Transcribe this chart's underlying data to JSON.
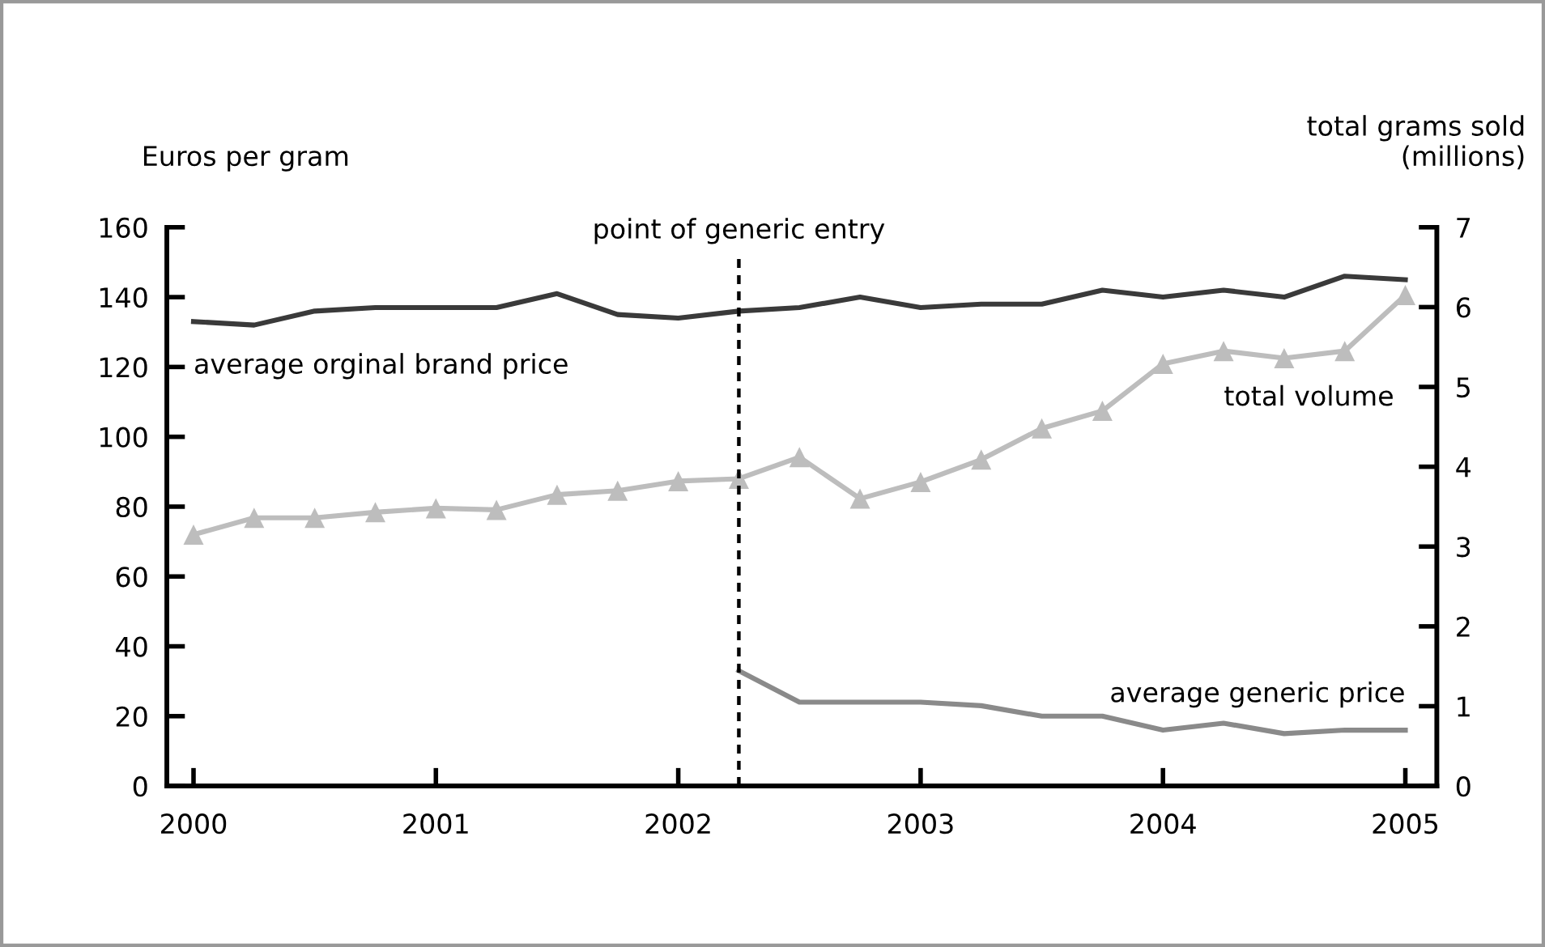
{
  "chart_data": {
    "type": "line",
    "ylabel": "Euros per gram",
    "y2label": "total grams sold\n(millions)",
    "x": [
      2000,
      2000.25,
      2000.5,
      2000.75,
      2001,
      2001.25,
      2001.5,
      2001.75,
      2002,
      2002.25,
      2002.5,
      2002.75,
      2003,
      2003.25,
      2003.5,
      2003.75,
      2004,
      2004.25,
      2004.5,
      2004.75,
      2005
    ],
    "series": [
      {
        "name": "average orginal brand price",
        "color": "#3a3a3a",
        "marker": "none",
        "values": [
          133,
          132,
          136,
          137,
          137,
          137,
          141,
          135,
          134,
          136,
          137,
          140,
          137,
          138,
          138,
          142,
          140,
          142,
          140,
          146,
          145
        ]
      },
      {
        "name": "total volume",
        "color": "#bdbdbd",
        "marker": "triangle",
        "axis": "y2",
        "values": [
          3.15,
          3.36,
          3.36,
          3.43,
          3.48,
          3.46,
          3.65,
          3.7,
          3.82,
          3.85,
          4.12,
          3.6,
          3.81,
          4.09,
          4.48,
          4.7,
          5.29,
          5.45,
          5.36,
          5.45,
          6.15
        ]
      },
      {
        "name": "average generic price",
        "color": "#8a8a8a",
        "marker": "none",
        "values": [
          null,
          null,
          null,
          null,
          null,
          null,
          null,
          null,
          null,
          33,
          24,
          24,
          24,
          23,
          20,
          20,
          16,
          18,
          15,
          16,
          16
        ]
      }
    ],
    "xlim": [
      1999.89,
      2005.13
    ],
    "xticks": [
      2000,
      2001,
      2002,
      2003,
      2004,
      2005
    ],
    "ylim": [
      0,
      160
    ],
    "yticks": [
      0,
      20,
      40,
      60,
      80,
      100,
      120,
      140,
      160
    ],
    "y2lim": [
      0,
      7
    ],
    "y2ticks": [
      0,
      1,
      2,
      3,
      4,
      5,
      6,
      7
    ],
    "ref_lines": [
      {
        "axis": "x",
        "value": 2002.25,
        "label": "point of generic entry",
        "color": "#000000",
        "line_style": "dotted"
      }
    ],
    "grid": false,
    "legend": false
  }
}
